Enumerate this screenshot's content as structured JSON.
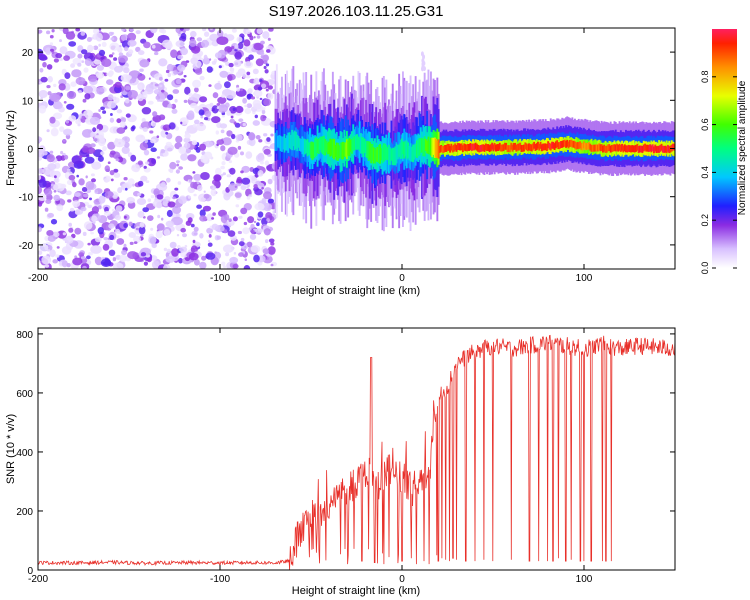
{
  "title": "S197.2026.103.11.25.G31",
  "chart_data": [
    {
      "type": "heatmap",
      "title": "S197.2026.103.11.25.G31",
      "xlabel": "Height of straight line (km)",
      "ylabel": "Frequency (Hz)",
      "xlim": [
        -200,
        150
      ],
      "ylim": [
        -25,
        25
      ],
      "xticks": [
        -200,
        -100,
        0,
        100
      ],
      "yticks": [
        -20,
        -10,
        0,
        10,
        20
      ],
      "colorbar": {
        "label": "Normalized spectral amplitude",
        "range": [
          0,
          1
        ],
        "ticks": [
          0.0,
          0.2,
          0.4,
          0.6,
          0.8
        ]
      },
      "regions": [
        {
          "name": "noise",
          "x_range": [
            -200,
            -70
          ],
          "description_amplitude": "low",
          "freq_range": [
            -25,
            25
          ]
        },
        {
          "name": "signal-track",
          "x_range": [
            -70,
            150
          ],
          "amplitude": "high"
        }
      ],
      "ridge": {
        "x": [
          -70,
          -65,
          -60,
          -55,
          -50,
          -45,
          -40,
          -35,
          -30,
          -25,
          -20,
          -15,
          -10,
          -5,
          0,
          5,
          10,
          15,
          20,
          40,
          60,
          80,
          90,
          100,
          110,
          130,
          150
        ],
        "freq": [
          1.5,
          1.0,
          1.8,
          0.5,
          -0.5,
          1.0,
          0.0,
          -0.5,
          0.0,
          1.5,
          0.0,
          -1.5,
          -1.0,
          -1.5,
          0.0,
          -1.0,
          0.5,
          0.5,
          0.0,
          0.2,
          0.2,
          0.5,
          1.0,
          0.5,
          0.0,
          0.0,
          0.0
        ],
        "amp": [
          0.35,
          0.4,
          0.45,
          0.4,
          0.55,
          0.5,
          0.6,
          0.55,
          0.65,
          0.45,
          0.5,
          0.6,
          0.5,
          0.45,
          0.5,
          0.45,
          0.55,
          0.6,
          0.9,
          0.95,
          0.9,
          0.95,
          0.92,
          0.85,
          0.9,
          0.95,
          0.95
        ]
      }
    },
    {
      "type": "line",
      "xlabel": "Height of straight line (km)",
      "ylabel": "SNR (10 * v/v)",
      "xlim": [
        -200,
        150
      ],
      "ylim": [
        0,
        820
      ],
      "xticks": [
        -200,
        -100,
        0,
        100
      ],
      "yticks": [
        0,
        200,
        400,
        600,
        800
      ],
      "series": [
        {
          "name": "SNR",
          "color": "#e8302a",
          "x": [
            -200,
            -180,
            -160,
            -140,
            -120,
            -100,
            -85,
            -70,
            -62,
            -60,
            -55,
            -50,
            -45,
            -40,
            -35,
            -30,
            -25,
            -20,
            -17,
            -15,
            -10,
            -5,
            0,
            5,
            10,
            15,
            18,
            20,
            22,
            25,
            30,
            40,
            50,
            60,
            70,
            80,
            90,
            100,
            110,
            120,
            130,
            140,
            150
          ],
          "values": [
            25,
            24,
            26,
            23,
            25,
            24,
            25,
            24,
            30,
            80,
            130,
            190,
            170,
            210,
            250,
            280,
            300,
            330,
            360,
            280,
            320,
            350,
            310,
            270,
            310,
            330,
            520,
            580,
            600,
            620,
            700,
            740,
            760,
            750,
            760,
            770,
            760,
            750,
            765,
            750,
            760,
            755,
            750
          ],
          "dropout_x": [
            -60,
            -30,
            -22,
            -15,
            -10,
            0,
            5,
            8,
            12,
            15,
            20,
            22,
            24,
            26,
            28,
            30,
            35,
            40,
            45,
            50,
            60,
            70,
            75,
            80,
            83,
            86,
            90,
            93,
            98,
            100,
            104,
            110,
            112,
            115
          ],
          "dropout_values": [
            15,
            20,
            30,
            25,
            20,
            30,
            40,
            20,
            30,
            20,
            30,
            40,
            35,
            30,
            40,
            35,
            30,
            30,
            35,
            30,
            35,
            30,
            30,
            30,
            30,
            40,
            30,
            35,
            30,
            30,
            30,
            30,
            30,
            30
          ]
        }
      ]
    }
  ]
}
